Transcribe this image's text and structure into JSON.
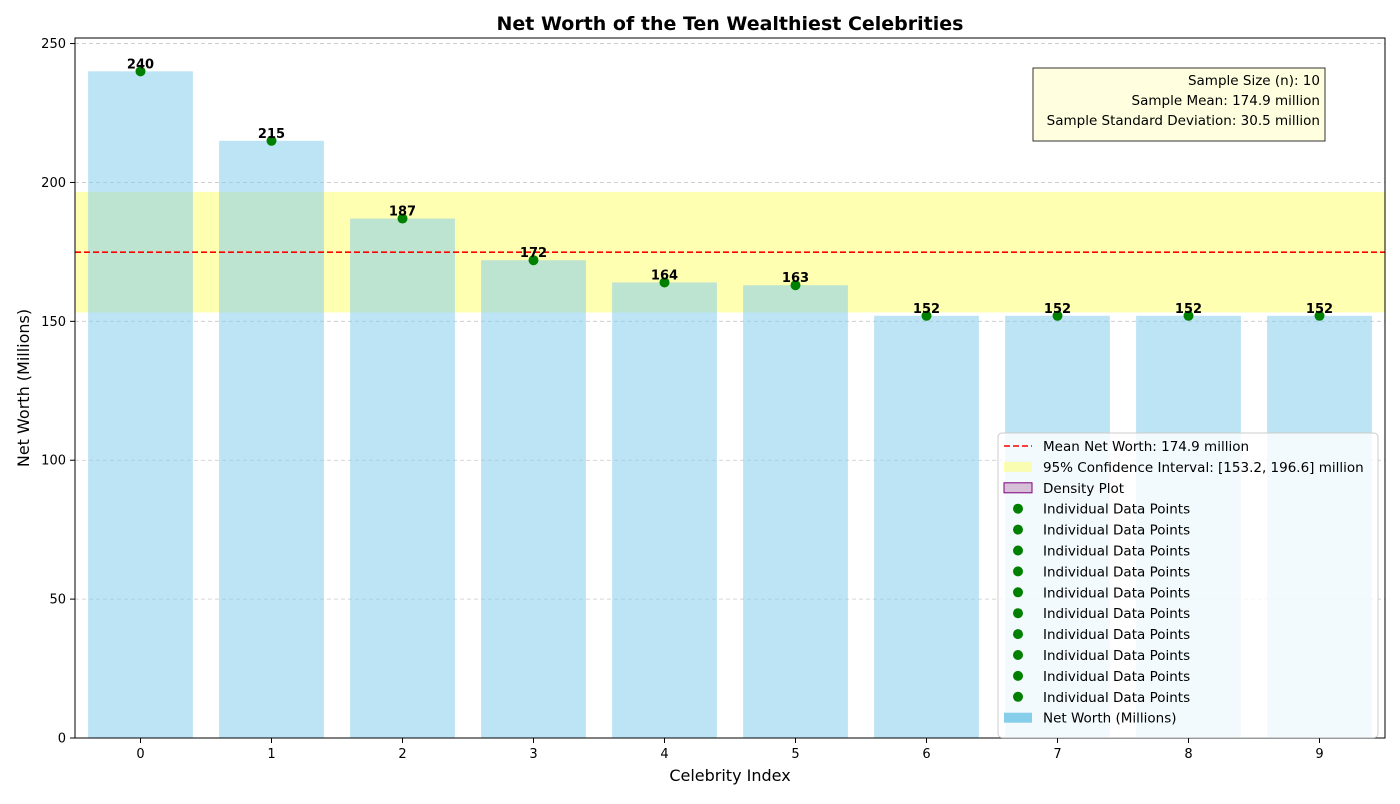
{
  "chart_data": {
    "type": "bar",
    "title": "Net Worth of the Ten Wealthiest Celebrities",
    "xlabel": "Celebrity Index",
    "ylabel": "Net Worth (Millions)",
    "categories": [
      "0",
      "1",
      "2",
      "3",
      "4",
      "5",
      "6",
      "7",
      "8",
      "9"
    ],
    "values": [
      240,
      215,
      187,
      172,
      164,
      163,
      152,
      152,
      152,
      152
    ],
    "data_labels": [
      "240",
      "215",
      "187",
      "172",
      "164",
      "163",
      "152",
      "152",
      "152",
      "152"
    ],
    "ylim": [
      0,
      252
    ],
    "yticks": [
      0,
      50,
      100,
      150,
      200,
      250
    ],
    "grid": "horizontal dashed",
    "mean": 174.9,
    "ci": [
      153.2,
      196.6
    ],
    "stats_box": {
      "lines": [
        "Sample Size (n): 10",
        "Sample Mean: 174.9 million",
        "Sample Standard Deviation: 30.5 million"
      ],
      "placement": "top-right"
    },
    "legend": {
      "placement": "lower-right",
      "entries": [
        {
          "kind": "dashed-line",
          "label": "Mean Net Worth: 174.9 million"
        },
        {
          "kind": "patch-ci",
          "label": "95% Confidence Interval: [153.2, 196.6] million"
        },
        {
          "kind": "patch-density",
          "label": "Density Plot"
        },
        {
          "kind": "dot",
          "label": "Individual Data Points"
        },
        {
          "kind": "dot",
          "label": "Individual Data Points"
        },
        {
          "kind": "dot",
          "label": "Individual Data Points"
        },
        {
          "kind": "dot",
          "label": "Individual Data Points"
        },
        {
          "kind": "dot",
          "label": "Individual Data Points"
        },
        {
          "kind": "dot",
          "label": "Individual Data Points"
        },
        {
          "kind": "dot",
          "label": "Individual Data Points"
        },
        {
          "kind": "dot",
          "label": "Individual Data Points"
        },
        {
          "kind": "dot",
          "label": "Individual Data Points"
        },
        {
          "kind": "dot",
          "label": "Individual Data Points"
        },
        {
          "kind": "patch-bar",
          "label": "Net Worth (Millions)"
        }
      ]
    },
    "colors": {
      "bar": "#87ceeb",
      "point": "#008000",
      "mean_line": "#ff0000",
      "ci_band": "#ffff66",
      "density_edge": "#800080",
      "density_fill": "#d8bfd8",
      "stats_bg": "#ffffe0"
    }
  }
}
